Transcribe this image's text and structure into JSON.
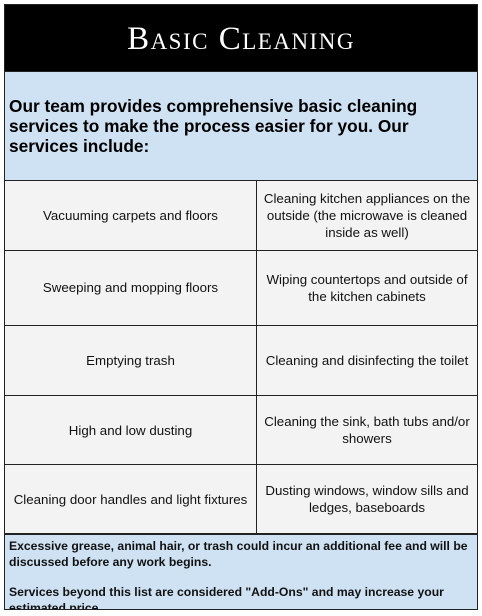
{
  "title": "Basic Cleaning",
  "intro": "Our team provides comprehensive basic cleaning services to make the process easier for you. Our services include:",
  "services": [
    [
      "Vacuuming carpets and floors",
      "Cleaning kitchen appliances on the outside (the microwave is cleaned inside as well)"
    ],
    [
      "Sweeping and mopping floors",
      "Wiping countertops and outside of the kitchen cabinets"
    ],
    [
      "Emptying trash",
      "Cleaning and disinfecting the toilet"
    ],
    [
      "High and low dusting",
      "Cleaning the sink, bath tubs and/or showers"
    ],
    [
      "Cleaning door handles and light fixtures",
      "Dusting windows, window sills and ledges, baseboards"
    ]
  ],
  "footer": {
    "note": "Excessive grease, animal hair, or trash could incur an additional fee and will be discussed before any work begins.",
    "addons": "Services beyond this list are considered  \"Add-Ons\" and may increase your estimated price."
  }
}
